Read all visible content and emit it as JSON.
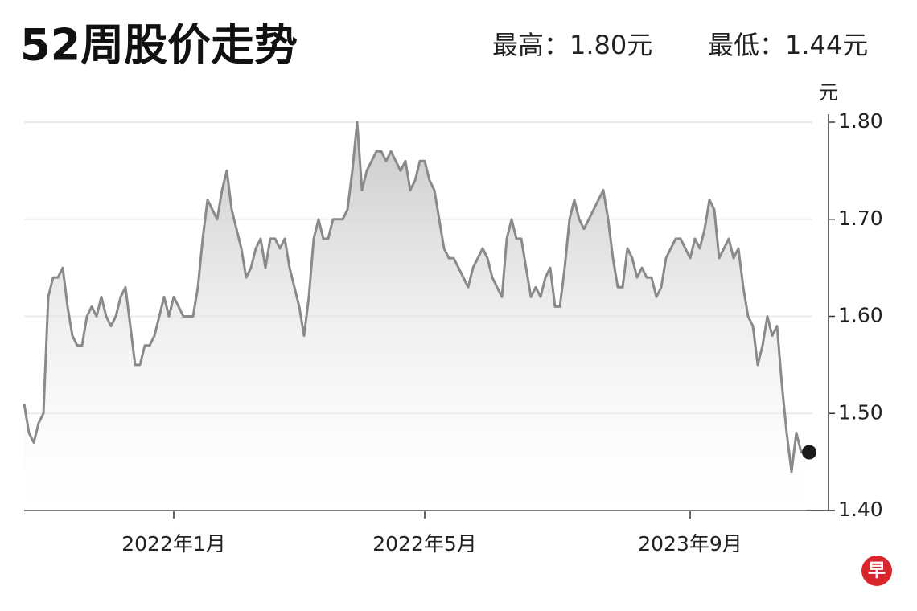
{
  "chart_data": {
    "type": "line",
    "title": "52周股价走势",
    "annotations": [
      "最高：1.80元",
      "最低：1.44元"
    ],
    "ylabel": "元",
    "logo": "早",
    "categories": [
      null,
      null,
      null,
      null,
      null,
      null,
      null,
      null,
      null,
      null,
      null,
      null,
      null,
      null,
      null,
      null,
      null,
      null,
      null,
      null,
      null,
      null,
      null,
      null,
      null,
      null,
      null,
      null,
      null,
      null,
      null,
      "2022年1月",
      null,
      null,
      null,
      null,
      null,
      null,
      null,
      null,
      null,
      null,
      null,
      null,
      null,
      null,
      null,
      null,
      null,
      null,
      null,
      null,
      null,
      null,
      null,
      null,
      null,
      null,
      null,
      null,
      null,
      null,
      null,
      null,
      null,
      null,
      null,
      null,
      null,
      null,
      null,
      null,
      null,
      null,
      null,
      null,
      null,
      null,
      null,
      null,
      null,
      null,
      null,
      "2022年5月",
      null,
      null,
      null,
      null,
      null,
      null,
      null,
      null,
      null,
      null,
      null,
      null,
      null,
      null,
      null,
      null,
      null,
      null,
      null,
      null,
      null,
      null,
      null,
      null,
      null,
      null,
      null,
      null,
      null,
      null,
      null,
      null,
      null,
      null,
      null,
      null,
      null,
      null,
      null,
      null,
      null,
      null,
      null,
      null,
      null,
      null,
      null,
      null,
      null,
      null,
      null,
      null,
      null,
      null,
      "2023年9月",
      null,
      null,
      null,
      null,
      null,
      null,
      null,
      null,
      null,
      null,
      null,
      null,
      null,
      null,
      null,
      null,
      null,
      null,
      null,
      null,
      null,
      null,
      null,
      null
    ],
    "series": [
      {
        "color": "#8a8a8a",
        "values": [
          1.51,
          1.48,
          1.47,
          1.49,
          1.5,
          1.62,
          1.64,
          1.64,
          1.65,
          1.61,
          1.58,
          1.57,
          1.57,
          1.6,
          1.61,
          1.6,
          1.62,
          1.6,
          1.59,
          1.6,
          1.62,
          1.63,
          1.59,
          1.55,
          1.55,
          1.57,
          1.57,
          1.58,
          1.6,
          1.62,
          1.6,
          1.62,
          1.61,
          1.6,
          1.6,
          1.6,
          1.63,
          1.68,
          1.72,
          1.71,
          1.7,
          1.73,
          1.75,
          1.71,
          1.69,
          1.67,
          1.64,
          1.65,
          1.67,
          1.68,
          1.65,
          1.68,
          1.68,
          1.67,
          1.68,
          1.65,
          1.63,
          1.61,
          1.58,
          1.62,
          1.68,
          1.7,
          1.68,
          1.68,
          1.7,
          1.7,
          1.7,
          1.71,
          1.75,
          1.8,
          1.73,
          1.75,
          1.76,
          1.77,
          1.77,
          1.76,
          1.77,
          1.76,
          1.75,
          1.76,
          1.73,
          1.74,
          1.76,
          1.76,
          1.74,
          1.73,
          1.7,
          1.67,
          1.66,
          1.66,
          1.65,
          1.64,
          1.63,
          1.65,
          1.66,
          1.67,
          1.66,
          1.64,
          1.63,
          1.62,
          1.68,
          1.7,
          1.68,
          1.68,
          1.65,
          1.62,
          1.63,
          1.62,
          1.64,
          1.65,
          1.61,
          1.61,
          1.65,
          1.7,
          1.72,
          1.7,
          1.69,
          1.7,
          1.71,
          1.72,
          1.73,
          1.7,
          1.66,
          1.63,
          1.63,
          1.67,
          1.66,
          1.64,
          1.65,
          1.64,
          1.64,
          1.62,
          1.63,
          1.66,
          1.67,
          1.68,
          1.68,
          1.67,
          1.66,
          1.68,
          1.67,
          1.69,
          1.72,
          1.71,
          1.66,
          1.67,
          1.68,
          1.66,
          1.67,
          1.63,
          1.6,
          1.59,
          1.55,
          1.57,
          1.6,
          1.58,
          1.59,
          1.53,
          1.48,
          1.44,
          1.48,
          1.46,
          1.46
        ]
      }
    ],
    "ylim": [
      1.4,
      1.8
    ],
    "yticks": [
      {
        "value": 1.4,
        "label": "1.40"
      },
      {
        "value": 1.5,
        "label": "1.50"
      },
      {
        "value": 1.6,
        "label": "1.60"
      },
      {
        "value": 1.7,
        "label": "1.70"
      },
      {
        "value": 1.8,
        "label": "1.80"
      }
    ],
    "grid": true
  }
}
